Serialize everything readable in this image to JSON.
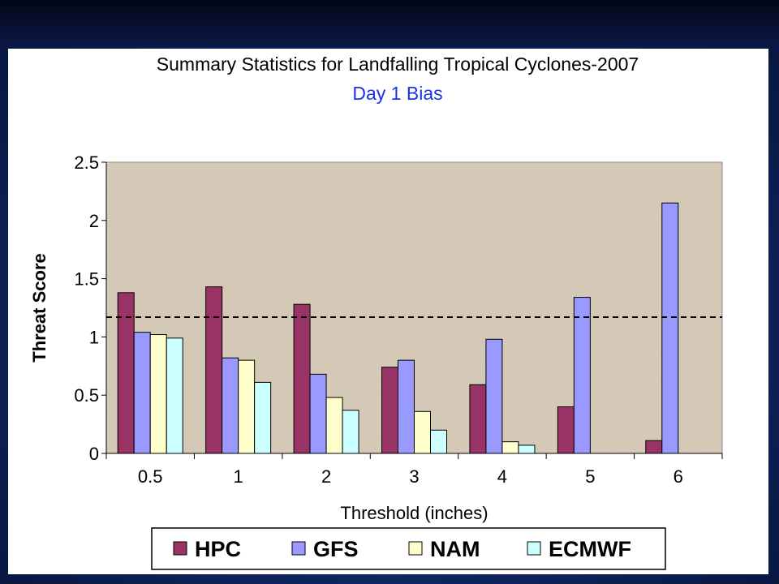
{
  "chart_data": {
    "type": "bar",
    "title": "Summary Statistics for Landfalling Tropical Cyclones-2007",
    "subtitle": "Day 1 Bias",
    "xlabel": "Threshold (inches)",
    "ylabel": "Threat Score",
    "ylim": [
      0,
      2.5
    ],
    "yticks": [
      "0",
      "0.5",
      "1",
      "1.5",
      "2",
      "2.5"
    ],
    "categories": [
      "0.5",
      "1",
      "2",
      "3",
      "4",
      "5",
      "6"
    ],
    "series": [
      {
        "name": "HPC",
        "color": "#993366",
        "values": [
          1.38,
          1.43,
          1.28,
          0.74,
          0.59,
          0.4,
          0.11
        ]
      },
      {
        "name": "GFS",
        "color": "#9999ff",
        "values": [
          1.04,
          0.82,
          0.68,
          0.8,
          0.98,
          1.34,
          2.15
        ]
      },
      {
        "name": "NAM",
        "color": "#ffffcc",
        "values": [
          1.02,
          0.8,
          0.48,
          0.36,
          0.1,
          null,
          null
        ]
      },
      {
        "name": "ECMWF",
        "color": "#ccffff",
        "values": [
          0.99,
          0.61,
          0.37,
          0.2,
          0.07,
          null,
          null
        ]
      }
    ],
    "reference_line": 1.17,
    "grid": false,
    "legend_position": "bottom"
  }
}
